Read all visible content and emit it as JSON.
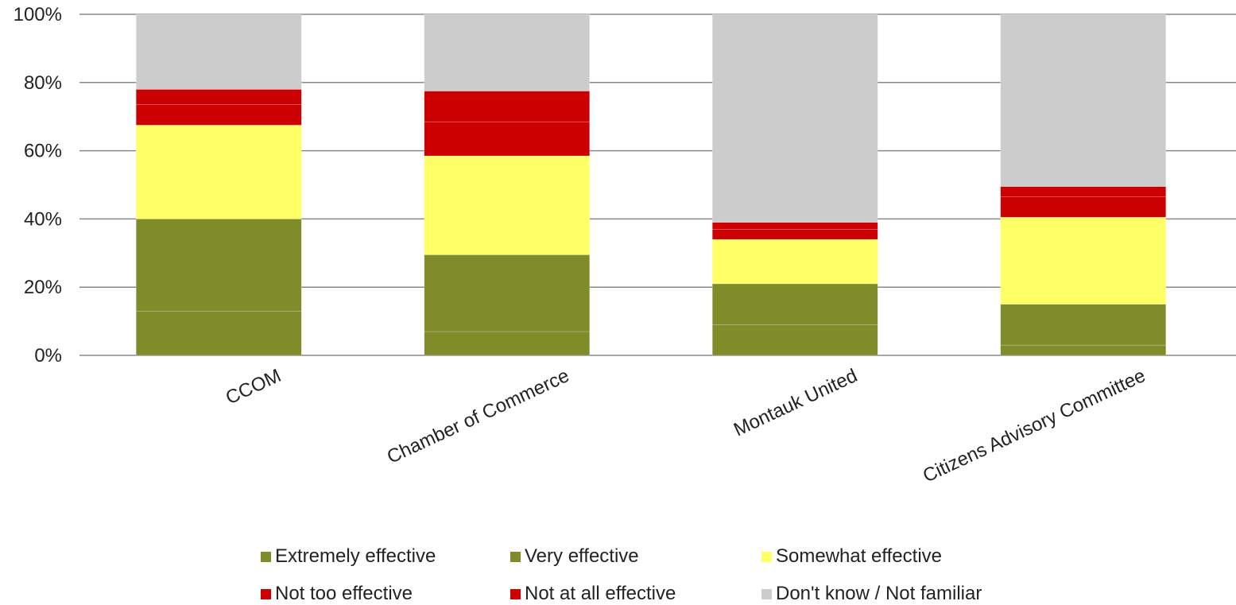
{
  "chart_data": {
    "type": "bar",
    "stacked": true,
    "categories": [
      "CCOM",
      "Chamber of Commerce",
      "Montauk United",
      "Citizens Advisory Committee"
    ],
    "series": [
      {
        "name": "Extremely effective",
        "color": "#808c2a",
        "values": [
          13,
          7,
          9,
          3
        ]
      },
      {
        "name": "Very effective",
        "color": "#808c2a",
        "values": [
          27,
          22.5,
          12,
          12
        ]
      },
      {
        "name": "Somewhat effective",
        "color": "#ffff66",
        "values": [
          27.5,
          29,
          13,
          25.5
        ]
      },
      {
        "name": "Not too effective",
        "color": "#cc0000",
        "values": [
          6,
          10,
          3,
          6
        ]
      },
      {
        "name": "Not at all effective",
        "color": "#cc0000",
        "values": [
          4.5,
          9,
          2,
          3
        ]
      },
      {
        "name": "Don't know / Not familiar",
        "color": "#cccccc",
        "values": [
          22,
          22.5,
          61,
          50.5
        ]
      }
    ],
    "yticks": [
      "0%",
      "20%",
      "40%",
      "60%",
      "80%",
      "100%"
    ],
    "ylim": [
      0,
      100
    ],
    "grid": true,
    "legend_position": "bottom"
  }
}
